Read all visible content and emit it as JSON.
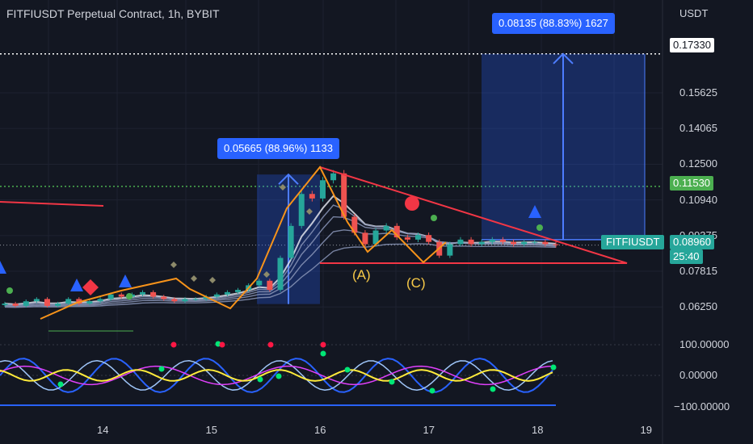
{
  "header": {
    "title": "FITFIUSDT Perpetual Contract, 1h, BYBIT",
    "unit": "USDT"
  },
  "colors": {
    "background": "#131722",
    "up": "#26a69a",
    "down": "#ef5350",
    "accent": "#2962ff",
    "orange": "#f7931a",
    "trend": "#f23645",
    "green_level": "#4caf50"
  },
  "chart_data": {
    "type": "candlestick",
    "title": "FITFIUSDT Perpetual Contract, 1h, BYBIT",
    "x_tick_labels": [
      "14",
      "15",
      "16",
      "17",
      "18",
      "19"
    ],
    "y_tick_labels": [
      "0.15625",
      "0.14065",
      "0.12500",
      "0.10940",
      "0.09375",
      "0.07815",
      "0.06250"
    ],
    "y_range": [
      0.052,
      0.181
    ],
    "ohlc_close": [
      0.064,
      0.063,
      0.065,
      0.066,
      0.063,
      0.064,
      0.066,
      0.064,
      0.065,
      0.066,
      0.068,
      0.067,
      0.068,
      0.069,
      0.067,
      0.066,
      0.065,
      0.066,
      0.066,
      0.067,
      0.068,
      0.069,
      0.07,
      0.072,
      0.074,
      0.07,
      0.084,
      0.098,
      0.112,
      0.11,
      0.118,
      0.121,
      0.102,
      0.095,
      0.09,
      0.096,
      0.098,
      0.093,
      0.092,
      0.094,
      0.091,
      0.085,
      0.09,
      0.092,
      0.09,
      0.091,
      0.092,
      0.091,
      0.09,
      0.091,
      0.091,
      0.09,
      0.0896
    ],
    "price_levels": {
      "target": "0.17330",
      "resistance": "0.11530",
      "last_price": "0.08960"
    },
    "last_price_label": "FITFIUSDT",
    "countdown": "25:40",
    "annotations": {
      "move_1": "0.05665 (88.96%) 1133",
      "move_2": "0.08135 (88.83%) 1627",
      "wave_labels": [
        "(A)",
        "(C)"
      ]
    },
    "oscillator": {
      "y_tick_labels": [
        "100.00000",
        "0.00000",
        "−100.00000"
      ],
      "y_range": [
        -100,
        100
      ]
    }
  }
}
